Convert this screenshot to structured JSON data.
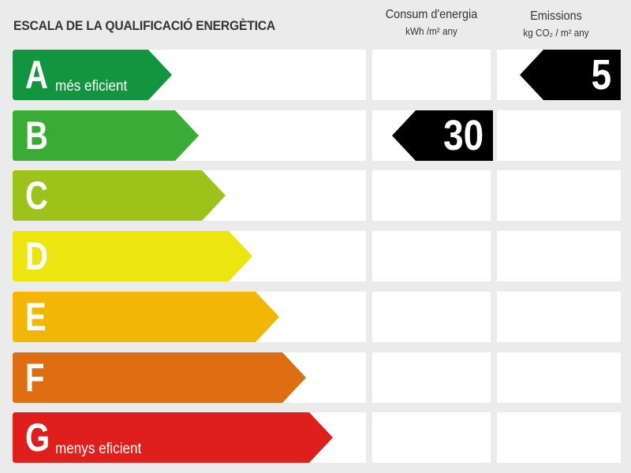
{
  "title": "ESCALA DE LA QUALIFICACIÓ ENERGÈTICA",
  "columns": {
    "consum": {
      "title": "Consum d'energia",
      "unit": "kWh /m² any"
    },
    "emissions": {
      "title": "Emissions",
      "unit": "kg CO₂ / m² any"
    }
  },
  "ratings": [
    {
      "letter": "A",
      "label": "més eficient",
      "color": "#13953f"
    },
    {
      "letter": "B",
      "label": "",
      "color": "#3aab35"
    },
    {
      "letter": "C",
      "label": "",
      "color": "#9cc31a"
    },
    {
      "letter": "D",
      "label": "",
      "color": "#ece50f"
    },
    {
      "letter": "E",
      "label": "",
      "color": "#f1b606"
    },
    {
      "letter": "F",
      "label": "",
      "color": "#df6e12"
    },
    {
      "letter": "G",
      "label": "menys eficient",
      "color": "#df1f1b"
    }
  ],
  "consum_value": {
    "value": "30",
    "rating": "B"
  },
  "emissions_value": {
    "value": "5",
    "rating": "A"
  }
}
